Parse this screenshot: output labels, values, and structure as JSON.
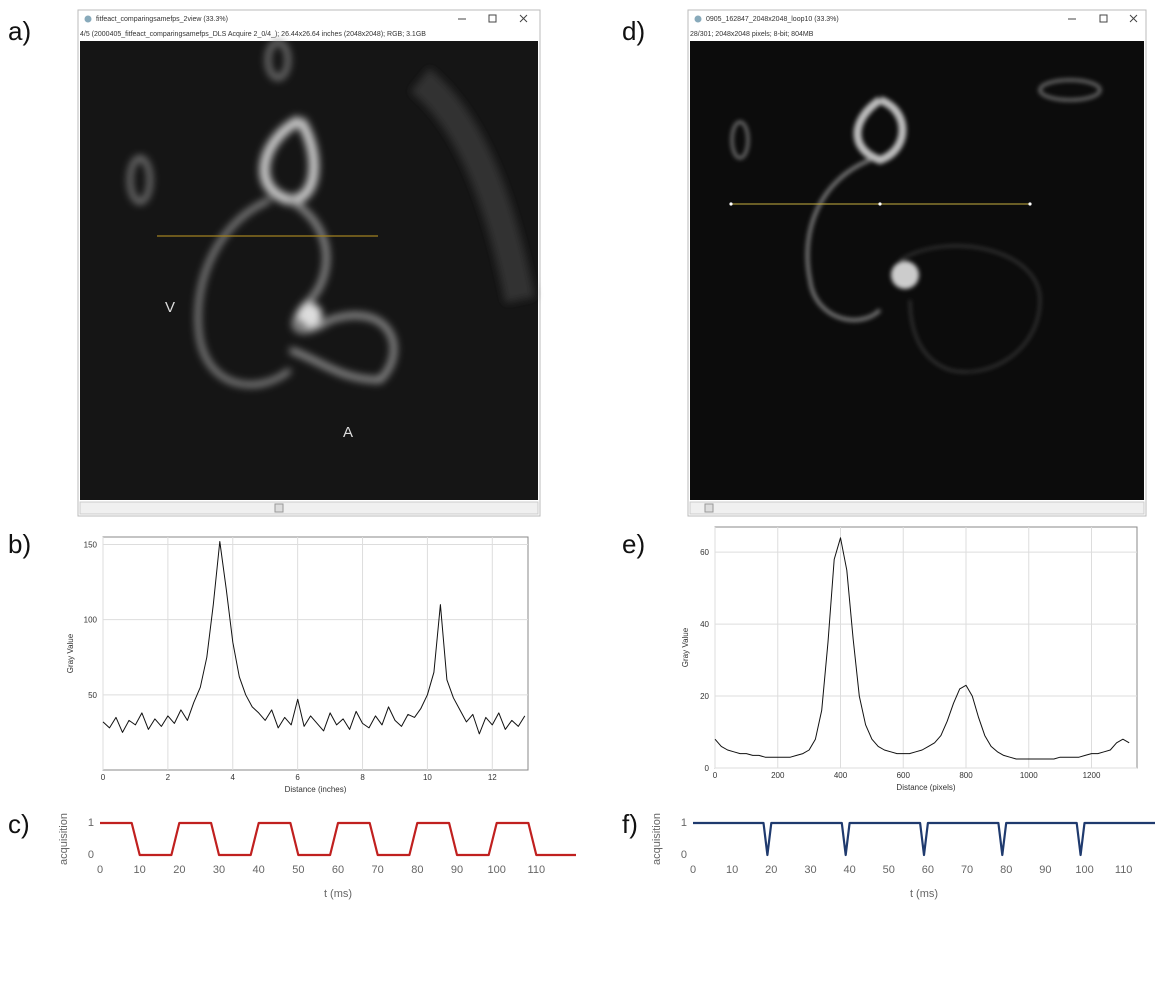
{
  "panel_labels": [
    "a)",
    "b)",
    "c)",
    "d)",
    "e)",
    "f)"
  ],
  "windows": [
    {
      "title": "fitfeact_comparingsamefps_2view (33.3%)",
      "info": "4/5 (2000405_fitfeact_comparingsamefps_DLS Acquire 2_0/4_); 26.44x26.64 inches (2048x2048); RGB; 3.1GB",
      "labels": [
        "V",
        "A"
      ]
    },
    {
      "title": "0905_162847_2048x2048_loop10 (33.3%)",
      "info": "28/301; 2048x2048 pixels; 8-bit; 804MB",
      "labels": []
    }
  ],
  "chart_data": [
    {
      "type": "line",
      "xlabel": "Distance (inches)",
      "ylabel": "Gray Value",
      "grid": true,
      "xlim": [
        0,
        13.1
      ],
      "ylim": [
        0,
        155
      ],
      "xticks": [
        0,
        2,
        4,
        6,
        8,
        10,
        12
      ],
      "yticks": [
        50,
        100,
        150
      ],
      "x": [
        0,
        0.2,
        0.4,
        0.6,
        0.8,
        1.0,
        1.2,
        1.4,
        1.6,
        1.8,
        2.0,
        2.2,
        2.4,
        2.6,
        2.8,
        3.0,
        3.2,
        3.4,
        3.6,
        3.8,
        4.0,
        4.2,
        4.4,
        4.6,
        4.8,
        5.0,
        5.2,
        5.4,
        5.6,
        5.8,
        6.0,
        6.2,
        6.4,
        6.6,
        6.8,
        7.0,
        7.2,
        7.4,
        7.6,
        7.8,
        8.0,
        8.2,
        8.4,
        8.6,
        8.8,
        9.0,
        9.2,
        9.4,
        9.6,
        9.8,
        10.0,
        10.2,
        10.4,
        10.6,
        10.8,
        11.0,
        11.2,
        11.4,
        11.6,
        11.8,
        12.0,
        12.2,
        12.4,
        12.6,
        12.8,
        13.0
      ],
      "series": [
        {
          "color": "#111111",
          "values": [
            32,
            28,
            35,
            25,
            33,
            30,
            38,
            27,
            34,
            29,
            36,
            31,
            40,
            33,
            45,
            55,
            75,
            110,
            152,
            120,
            85,
            62,
            50,
            42,
            38,
            33,
            40,
            28,
            35,
            30,
            47,
            29,
            36,
            31,
            26,
            38,
            30,
            34,
            27,
            39,
            31,
            28,
            36,
            30,
            42,
            33,
            29,
            37,
            35,
            41,
            50,
            65,
            110,
            60,
            48,
            40,
            32,
            37,
            24,
            35,
            30,
            38,
            27,
            33,
            29,
            36
          ]
        }
      ]
    },
    {
      "type": "line",
      "xlabel": "t (ms)",
      "ylabel": "acquisition",
      "grid": false,
      "xlim": [
        0,
        120
      ],
      "ylim": [
        0,
        1
      ],
      "xticks": [
        0,
        10,
        20,
        30,
        40,
        50,
        60,
        70,
        80,
        90,
        100,
        110
      ],
      "yticks": [
        0,
        1
      ],
      "x": [
        0,
        8,
        10,
        18,
        20,
        28,
        30,
        38,
        40,
        48,
        50,
        58,
        60,
        68,
        70,
        78,
        80,
        88,
        90,
        98,
        100,
        108,
        110,
        120
      ],
      "series": [
        {
          "color": "#c0201f",
          "values": [
            1,
            1,
            0,
            0,
            1,
            1,
            0,
            0,
            1,
            1,
            0,
            0,
            1,
            1,
            0,
            0,
            1,
            1,
            0,
            0,
            1,
            1,
            0,
            0
          ]
        }
      ]
    },
    {
      "type": "line",
      "xlabel": "Distance (pixels)",
      "ylabel": "Gray Value",
      "grid": true,
      "xlim": [
        0,
        1345
      ],
      "ylim": [
        0,
        67
      ],
      "xticks": [
        0,
        200,
        400,
        600,
        800,
        1000,
        1200
      ],
      "yticks": [
        0,
        20,
        40,
        60
      ],
      "x": [
        0,
        20,
        40,
        60,
        80,
        100,
        120,
        140,
        160,
        180,
        200,
        220,
        240,
        260,
        280,
        300,
        320,
        340,
        360,
        380,
        400,
        420,
        440,
        460,
        480,
        500,
        520,
        540,
        560,
        580,
        600,
        620,
        640,
        660,
        680,
        700,
        720,
        740,
        760,
        780,
        800,
        820,
        840,
        860,
        880,
        900,
        920,
        940,
        960,
        980,
        1000,
        1020,
        1040,
        1060,
        1080,
        1100,
        1120,
        1140,
        1160,
        1180,
        1200,
        1220,
        1240,
        1260,
        1280,
        1300,
        1320
      ],
      "series": [
        {
          "color": "#111111",
          "values": [
            8,
            6,
            5,
            4.5,
            4,
            4,
            3.5,
            3.5,
            3,
            3,
            3,
            3,
            3,
            3.5,
            4,
            5,
            8,
            16,
            35,
            58,
            64,
            55,
            36,
            20,
            12,
            8,
            6,
            5,
            4.5,
            4,
            4,
            4,
            4.5,
            5,
            6,
            7,
            9,
            13,
            18,
            22,
            23,
            20,
            14,
            9,
            6,
            4.5,
            3.5,
            3,
            2.5,
            2.5,
            2.5,
            2.5,
            2.5,
            2.5,
            2.5,
            3,
            3,
            3,
            3,
            3.5,
            4,
            4,
            4.5,
            5,
            7,
            8,
            7
          ]
        }
      ]
    },
    {
      "type": "line",
      "xlabel": "t (ms)",
      "ylabel": "acquisition",
      "grid": false,
      "xlim": [
        0,
        118
      ],
      "ylim": [
        0,
        1
      ],
      "xticks": [
        0,
        10,
        20,
        30,
        40,
        50,
        60,
        70,
        80,
        90,
        100,
        110
      ],
      "yticks": [
        0,
        1
      ],
      "x": [
        0,
        18,
        19,
        20,
        38,
        39,
        40,
        58,
        59,
        60,
        78,
        79,
        80,
        98,
        99,
        100,
        118
      ],
      "series": [
        {
          "color": "#1f3a6e",
          "values": [
            1,
            1,
            0,
            1,
            1,
            0,
            1,
            1,
            0,
            1,
            1,
            0,
            1,
            1,
            0,
            1,
            1
          ]
        }
      ]
    }
  ]
}
